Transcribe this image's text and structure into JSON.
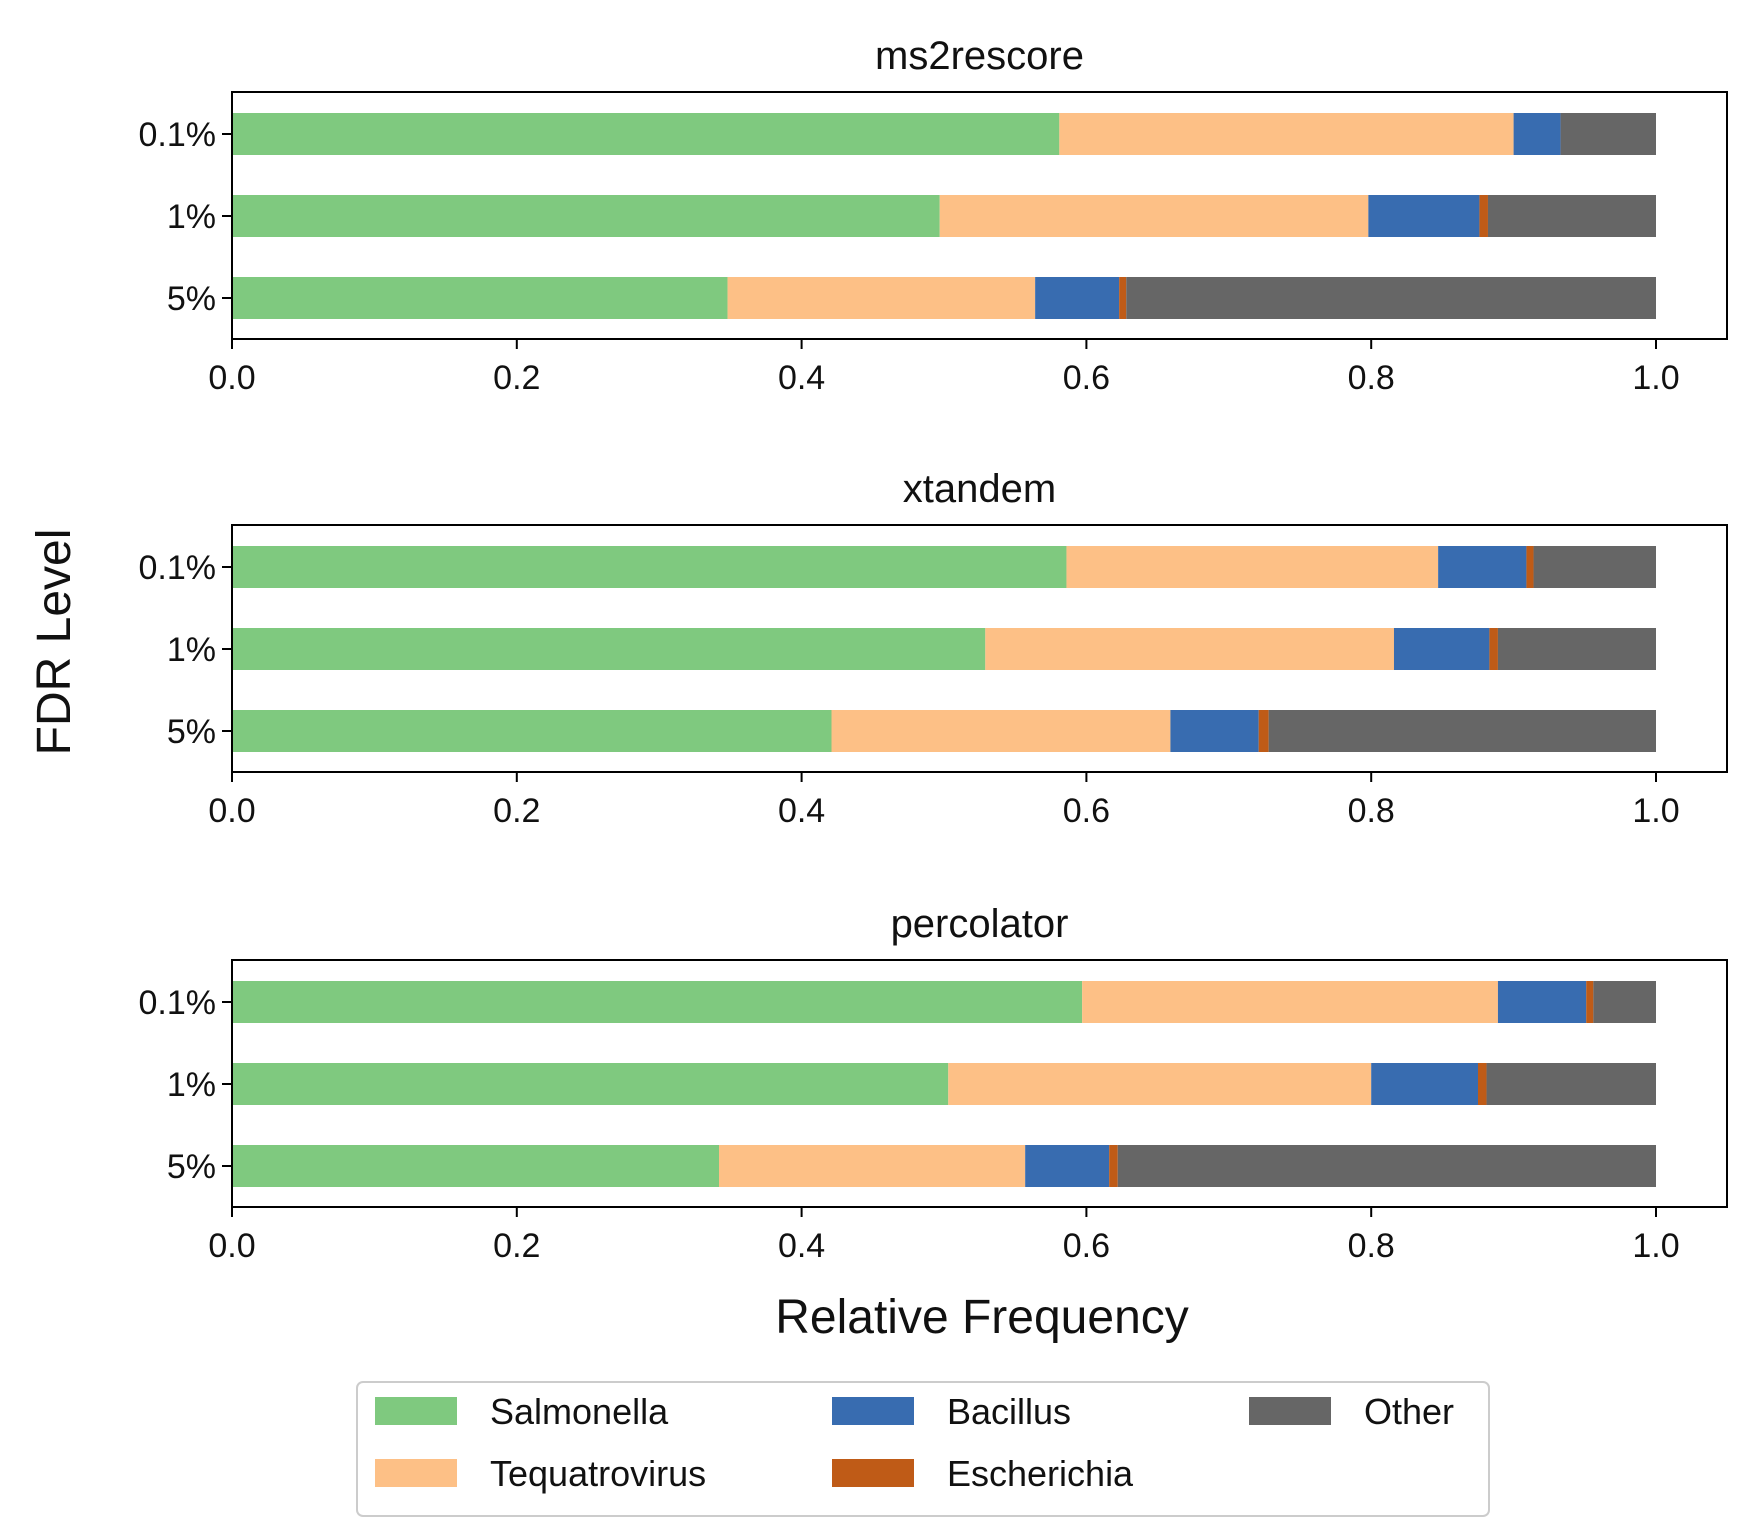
{
  "chart_data": {
    "type": "bar",
    "orientation": "horizontal",
    "stacked": true,
    "ylabel": "FDR Level",
    "xlabel": "Relative Frequency",
    "xlim": [
      0,
      1.05
    ],
    "xticks": [
      "0.0",
      "0.2",
      "0.4",
      "0.6",
      "0.8",
      "1.0"
    ],
    "categories": [
      "0.1%",
      "1%",
      "5%"
    ],
    "legend": {
      "placement": "bottom-center",
      "entries": [
        "Salmonella",
        "Tequatrovirus",
        "Bacillus",
        "Escherichia",
        "Other"
      ]
    },
    "series_colors": {
      "Salmonella": "#7fc97f",
      "Tequatrovirus": "#fdc086",
      "Bacillus": "#386cb0",
      "Escherichia": "#bf5b17",
      "Other": "#666666"
    },
    "panels": [
      {
        "title": "ms2rescore",
        "series": [
          {
            "name": "Salmonella",
            "values": [
              0.581,
              0.497,
              0.348
            ]
          },
          {
            "name": "Tequatrovirus",
            "values": [
              0.319,
              0.301,
              0.216
            ]
          },
          {
            "name": "Bacillus",
            "values": [
              0.033,
              0.078,
              0.059
            ]
          },
          {
            "name": "Escherichia",
            "values": [
              0.0,
              0.006,
              0.005
            ]
          },
          {
            "name": "Other",
            "values": [
              0.067,
              0.118,
              0.372
            ]
          }
        ]
      },
      {
        "title": "xtandem",
        "series": [
          {
            "name": "Salmonella",
            "values": [
              0.586,
              0.529,
              0.421
            ]
          },
          {
            "name": "Tequatrovirus",
            "values": [
              0.261,
              0.287,
              0.238
            ]
          },
          {
            "name": "Bacillus",
            "values": [
              0.062,
              0.067,
              0.062
            ]
          },
          {
            "name": "Escherichia",
            "values": [
              0.005,
              0.006,
              0.007
            ]
          },
          {
            "name": "Other",
            "values": [
              0.086,
              0.111,
              0.272
            ]
          }
        ]
      },
      {
        "title": "percolator",
        "series": [
          {
            "name": "Salmonella",
            "values": [
              0.597,
              0.503,
              0.342
            ]
          },
          {
            "name": "Tequatrovirus",
            "values": [
              0.292,
              0.297,
              0.215
            ]
          },
          {
            "name": "Bacillus",
            "values": [
              0.062,
              0.075,
              0.059
            ]
          },
          {
            "name": "Escherichia",
            "values": [
              0.005,
              0.006,
              0.006
            ]
          },
          {
            "name": "Other",
            "values": [
              0.044,
              0.119,
              0.378
            ]
          }
        ]
      }
    ]
  }
}
